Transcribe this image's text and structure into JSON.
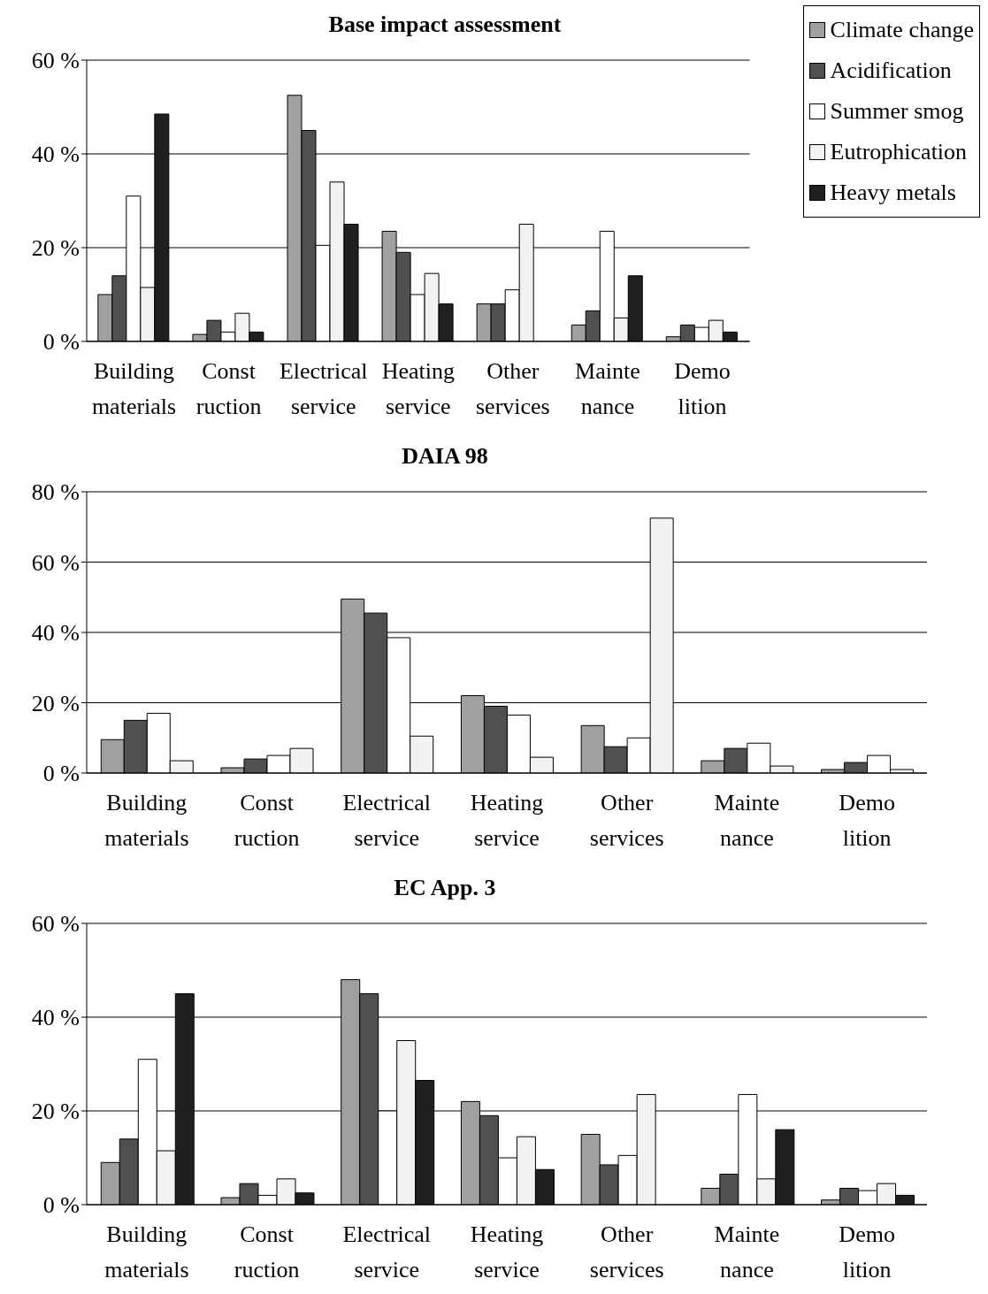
{
  "chart_data": [
    {
      "type": "bar",
      "title": "Base impact assessment",
      "categories": [
        "Building materials",
        "Const ruction",
        "Electrical service",
        "Heating service",
        "Other services",
        "Mainte nance",
        "Demo lition"
      ],
      "series": [
        {
          "name": "Climate change",
          "color": "#a0a0a0",
          "values": [
            10,
            1.5,
            52.5,
            23.5,
            8,
            3.5,
            1
          ]
        },
        {
          "name": "Acidification",
          "color": "#505050",
          "values": [
            14,
            4.5,
            45,
            19,
            8,
            6.5,
            3.5
          ]
        },
        {
          "name": "Summer smog",
          "color": "#ffffff",
          "values": [
            31,
            2,
            20.5,
            10,
            11,
            23.5,
            3
          ]
        },
        {
          "name": "Eutrophication",
          "color": "#f2f2f2",
          "values": [
            11.5,
            6,
            34,
            14.5,
            25,
            5,
            4.5
          ]
        },
        {
          "name": "Heavy metals",
          "color": "#202020",
          "values": [
            48.5,
            2,
            25,
            8,
            0,
            14,
            2
          ]
        }
      ],
      "ylim": [
        0,
        60
      ],
      "yticks": [
        {
          "value": 0,
          "label": "0 %"
        },
        {
          "value": 20,
          "label": "20 %"
        },
        {
          "value": 40,
          "label": "40 %"
        },
        {
          "value": 60,
          "label": "60 %"
        }
      ],
      "grid": "y",
      "legend": "top right"
    },
    {
      "type": "bar",
      "title": "DAIA 98",
      "categories": [
        "Building materials",
        "Const ruction",
        "Electrical service",
        "Heating service",
        "Other services",
        "Mainte nance",
        "Demo lition"
      ],
      "series": [
        {
          "color": "#a0a0a0",
          "values": [
            9.5,
            1.5,
            49.5,
            22,
            13.5,
            3.5,
            1
          ]
        },
        {
          "color": "#505050",
          "values": [
            15,
            4,
            45.5,
            19,
            7.5,
            7,
            3
          ]
        },
        {
          "color": "#ffffff",
          "values": [
            17,
            5,
            38.5,
            16.5,
            10,
            8.5,
            5
          ]
        },
        {
          "color": "#f2f2f2",
          "values": [
            3.5,
            7,
            10.5,
            4.5,
            72.5,
            2,
            1
          ]
        }
      ],
      "ylim": [
        0,
        80
      ],
      "yticks": [
        {
          "value": 0,
          "label": "0 %"
        },
        {
          "value": 20,
          "label": "20 %"
        },
        {
          "value": 40,
          "label": "40 %"
        },
        {
          "value": 60,
          "label": "60 %"
        },
        {
          "value": 80,
          "label": "80 %"
        }
      ],
      "grid": "y"
    },
    {
      "type": "bar",
      "title": "EC App. 3",
      "categories": [
        "Building materials",
        "Const ruction",
        "Electrical service",
        "Heating service",
        "Other services",
        "Mainte nance",
        "Demo lition"
      ],
      "series": [
        {
          "color": "#a0a0a0",
          "values": [
            9,
            1.5,
            48,
            22,
            15,
            3.5,
            1
          ]
        },
        {
          "color": "#505050",
          "values": [
            14,
            4.5,
            45,
            19,
            8.5,
            6.5,
            3.5
          ]
        },
        {
          "color": "#ffffff",
          "values": [
            31,
            2,
            20,
            10,
            10.5,
            23.5,
            3
          ]
        },
        {
          "color": "#f2f2f2",
          "values": [
            11.5,
            5.5,
            35,
            14.5,
            23.5,
            5.5,
            4.5
          ]
        },
        {
          "color": "#202020",
          "values": [
            45,
            2.5,
            26.5,
            7.5,
            0,
            16,
            2
          ]
        }
      ],
      "ylim": [
        0,
        60
      ],
      "yticks": [
        {
          "value": 0,
          "label": "0 %"
        },
        {
          "value": 20,
          "label": "20 %"
        },
        {
          "value": 40,
          "label": "40 %"
        },
        {
          "value": 60,
          "label": "60 %"
        }
      ],
      "grid": "y"
    }
  ]
}
